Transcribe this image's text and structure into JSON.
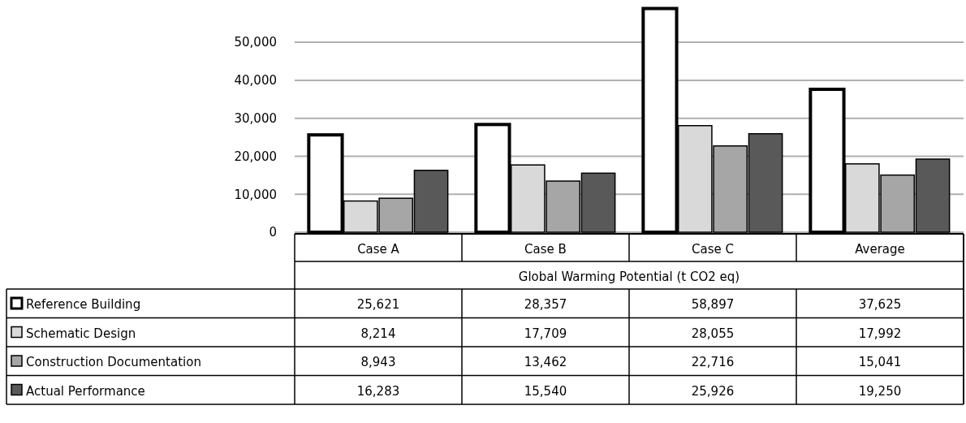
{
  "chart_data": {
    "type": "bar",
    "xlabel": "Global Warming Potential (t CO2 eq)",
    "categories": [
      "Case A",
      "Case B",
      "Case C",
      "Average"
    ],
    "series": [
      {
        "name": "Reference Building",
        "color": "#ffffff",
        "values": [
          25621,
          28357,
          58897,
          37625
        ],
        "value_labels": [
          "25,621",
          "28,357",
          "58,897",
          "37,625"
        ]
      },
      {
        "name": "Schematic Design",
        "color": "#d9d9d9",
        "values": [
          8214,
          17709,
          28055,
          17992
        ],
        "value_labels": [
          "8,214",
          "17,709",
          "28,055",
          "17,992"
        ]
      },
      {
        "name": "Construction Documentation",
        "color": "#a6a6a6",
        "values": [
          8943,
          13462,
          22716,
          15041
        ],
        "value_labels": [
          "8,943",
          "13,462",
          "22,716",
          "15,041"
        ]
      },
      {
        "name": "Actual Performance",
        "color": "#595959",
        "values": [
          16283,
          15540,
          25926,
          19250
        ],
        "value_labels": [
          "16,283",
          "15,540",
          "25,926",
          "19,250"
        ]
      }
    ],
    "ylim": [
      0,
      59000
    ],
    "yticks": [
      0,
      {
        "value": 10000,
        "label": "10,000"
      },
      {
        "value": 20000,
        "label": "20,000"
      },
      {
        "value": 30000,
        "label": "30,000"
      },
      {
        "value": 40000,
        "label": "40,000"
      },
      {
        "value": 50000,
        "label": "50,000"
      }
    ],
    "grid": "y",
    "legend": "bottom"
  }
}
